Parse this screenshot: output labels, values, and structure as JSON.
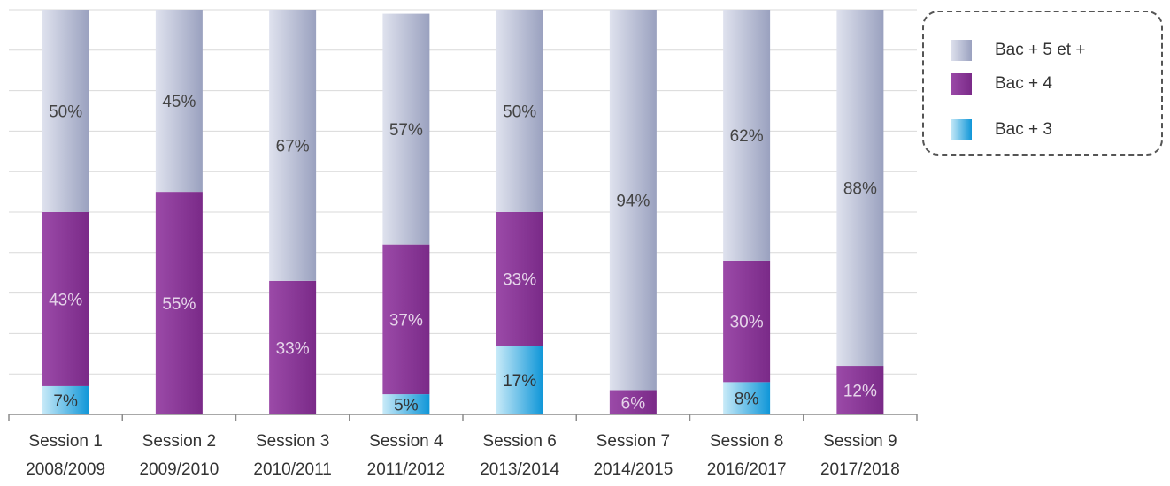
{
  "chart_data": {
    "type": "bar",
    "stacked": true,
    "percent_stacked": true,
    "categories": [
      [
        "Session 1",
        "2008/2009"
      ],
      [
        "Session 2",
        "2009/2010"
      ],
      [
        "Session 3",
        "2010/2011"
      ],
      [
        "Session 4",
        "2011/2012"
      ],
      [
        "Session 6",
        "2013/2014"
      ],
      [
        "Session 7",
        "2014/2015"
      ],
      [
        "Session 8",
        "2016/2017"
      ],
      [
        "Session 9",
        "2017/2018"
      ]
    ],
    "series": [
      {
        "name": "Bac + 3",
        "values": [
          7,
          0,
          0,
          5,
          17,
          0,
          8,
          0
        ],
        "labels": [
          "7%",
          "",
          "",
          "5%",
          "17%",
          "",
          "8%",
          ""
        ],
        "color": "#1ba3e0"
      },
      {
        "name": "Bac + 4",
        "values": [
          43,
          55,
          33,
          37,
          33,
          6,
          30,
          12
        ],
        "labels": [
          "43%",
          "55%",
          "33%",
          "37%",
          "33%",
          "6%",
          "30%",
          "12%"
        ],
        "color": "#8a3a96"
      },
      {
        "name": "Bac + 5 et +",
        "values": [
          50,
          45,
          67,
          57,
          50,
          94,
          62,
          88
        ],
        "labels": [
          "50%",
          "45%",
          "67%",
          "57%",
          "50%",
          "94%",
          "62%",
          "88%"
        ],
        "color": "#b9bfd6"
      }
    ],
    "ylim": [
      0,
      100
    ],
    "grid": true,
    "legend_position": "top-right",
    "legend_order": [
      "Bac + 5 et +",
      "Bac + 4",
      "Bac + 3"
    ]
  }
}
